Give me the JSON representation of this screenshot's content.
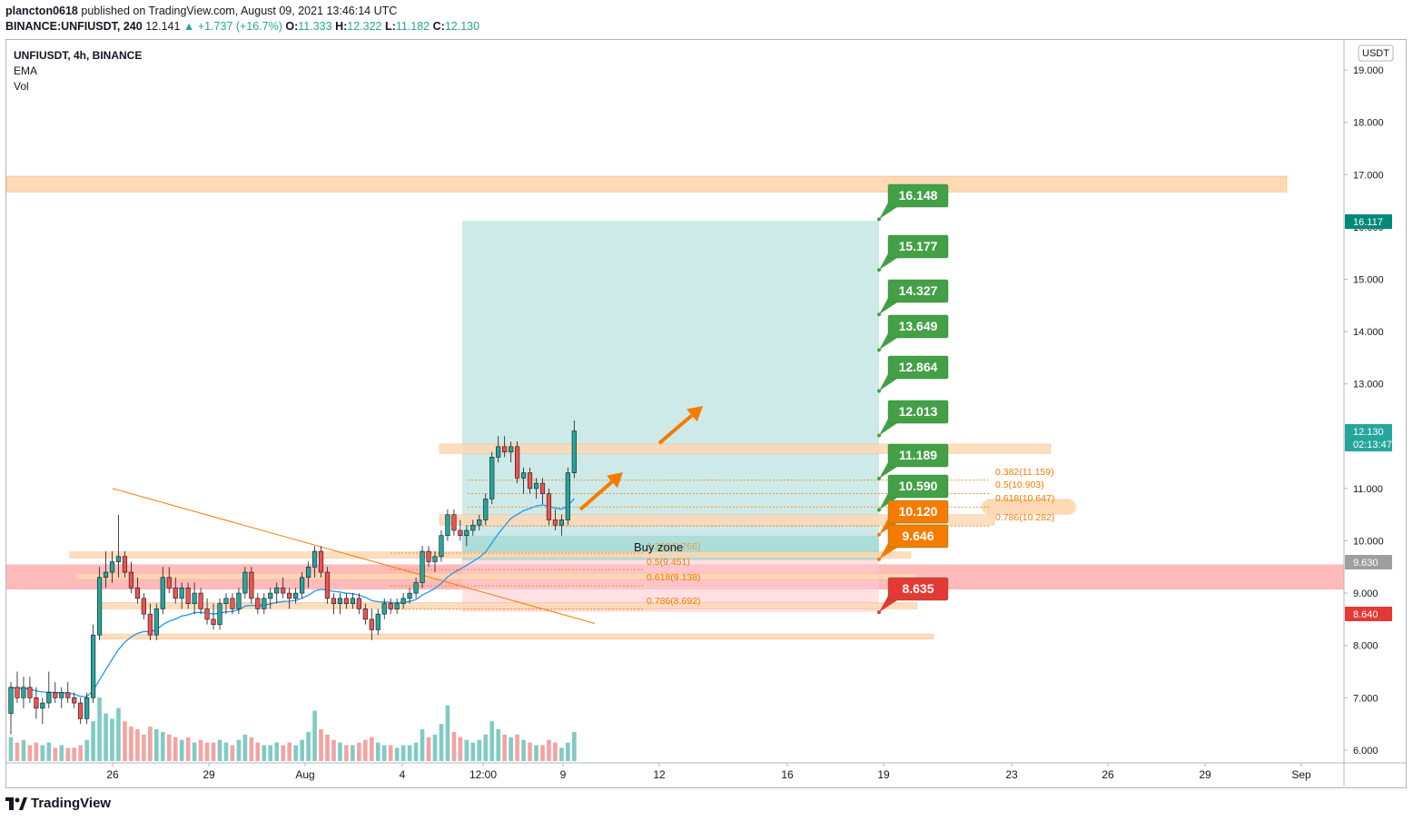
{
  "header": {
    "publisher": "plancton0618",
    "published_text": "published on TradingView.com, August 09, 2021 13:46:14 UTC",
    "symbol_full": "BINANCE:UNFIUSDT, 240",
    "last": "12.141",
    "change": "+1.737 (+16.7%)",
    "open_label": "O:",
    "open": "11.333",
    "high_label": "H:",
    "high": "12.322",
    "low_label": "L:",
    "low": "11.182",
    "close_label": "C:",
    "close": "12.130"
  },
  "legend": {
    "symbol": "UNFIUSDT, 4h, BINANCE",
    "ema": "EMA",
    "vol": "Vol"
  },
  "footer": {
    "brand": "TradingView"
  },
  "colors": {
    "up": "#26a69a",
    "down": "#ef5350",
    "ema": "#2196f3",
    "zone_orange": "#fdd9b5",
    "zone_red": "#ffb3b3",
    "position_teal": "#b2dfdb",
    "target_green": "#43a047",
    "target_orange": "#f57c00",
    "target_red": "#e53935",
    "fib_orange": "#f57c00"
  },
  "chart_data": {
    "type": "candlestick",
    "currency_label": "USDT",
    "y_axis": {
      "ylim": [
        5.8,
        19.6
      ],
      "ticks": [
        "19.000",
        "18.000",
        "17.000",
        "16.000",
        "15.000",
        "14.000",
        "13.000",
        "12.000",
        "11.000",
        "10.000",
        "9.000",
        "8.000",
        "7.000",
        "6.000"
      ]
    },
    "x_axis": {
      "ticks": [
        "26",
        "29",
        "Aug",
        "4",
        "12:00",
        "9",
        "12",
        "16",
        "19",
        "23",
        "26",
        "29",
        "Sep"
      ]
    },
    "price_badges": [
      {
        "value": "16.117",
        "color": "#00897b"
      },
      {
        "value": "12.130",
        "sub": "02:13:47",
        "color": "#26a69a"
      },
      {
        "value": "9.630",
        "color": "#9e9e9e"
      },
      {
        "value": "8.640",
        "color": "#e53935"
      }
    ],
    "targets": [
      {
        "label": "16.148",
        "kind": "tp"
      },
      {
        "label": "15.177",
        "kind": "tp"
      },
      {
        "label": "14.327",
        "kind": "tp"
      },
      {
        "label": "13.649",
        "kind": "tp"
      },
      {
        "label": "12.864",
        "kind": "tp"
      },
      {
        "label": "12.013",
        "kind": "tp"
      },
      {
        "label": "11.189",
        "kind": "tp"
      },
      {
        "label": "10.590",
        "kind": "tp"
      },
      {
        "label": "10.120",
        "kind": "entry"
      },
      {
        "label": "9.646",
        "kind": "entry"
      },
      {
        "label": "8.635",
        "kind": "stop"
      }
    ],
    "fib_upper": [
      "0.382(11.159)",
      "0.5(10.903)",
      "0.618(10.647)",
      "0.786(10.282)"
    ],
    "fib_lower": [
      "0.382(9.766)",
      "0.5(9.451)",
      "0.618(9.138)",
      "0.786(8.692)"
    ],
    "buy_zone_label": "Buy zone",
    "candles": [
      [
        6.7,
        7.3,
        6.3,
        7.2
      ],
      [
        7.2,
        7.5,
        6.9,
        7.0
      ],
      [
        7.0,
        7.4,
        6.8,
        7.2
      ],
      [
        7.2,
        7.4,
        6.9,
        7.0
      ],
      [
        7.0,
        7.2,
        6.6,
        6.8
      ],
      [
        6.8,
        7.0,
        6.5,
        6.9
      ],
      [
        6.9,
        7.5,
        6.8,
        7.1
      ],
      [
        7.1,
        7.3,
        6.9,
        7.0
      ],
      [
        7.0,
        7.2,
        6.8,
        7.1
      ],
      [
        7.1,
        7.3,
        6.9,
        7.0
      ],
      [
        7.0,
        7.1,
        6.8,
        6.9
      ],
      [
        6.9,
        7.0,
        6.5,
        6.6
      ],
      [
        6.6,
        7.1,
        6.5,
        7.0
      ],
      [
        7.0,
        8.4,
        6.9,
        8.2
      ],
      [
        8.2,
        9.5,
        8.1,
        9.3
      ],
      [
        9.3,
        9.8,
        9.1,
        9.4
      ],
      [
        9.4,
        9.8,
        9.2,
        9.6
      ],
      [
        9.6,
        10.5,
        9.3,
        9.7
      ],
      [
        9.7,
        9.8,
        9.3,
        9.4
      ],
      [
        9.4,
        9.6,
        9.0,
        9.1
      ],
      [
        9.1,
        9.3,
        8.8,
        8.9
      ],
      [
        8.9,
        9.0,
        8.5,
        8.6
      ],
      [
        8.6,
        8.8,
        8.1,
        8.2
      ],
      [
        8.2,
        8.8,
        8.1,
        8.7
      ],
      [
        8.7,
        9.5,
        8.6,
        9.3
      ],
      [
        9.3,
        9.5,
        9.0,
        9.1
      ],
      [
        9.1,
        9.3,
        8.8,
        8.9
      ],
      [
        8.9,
        9.2,
        8.7,
        9.1
      ],
      [
        9.1,
        9.2,
        8.7,
        8.8
      ],
      [
        8.8,
        9.2,
        8.6,
        9.0
      ],
      [
        9.0,
        9.1,
        8.6,
        8.7
      ],
      [
        8.7,
        8.9,
        8.4,
        8.5
      ],
      [
        8.5,
        8.8,
        8.3,
        8.4
      ],
      [
        8.4,
        8.9,
        8.3,
        8.8
      ],
      [
        8.8,
        9.0,
        8.6,
        8.9
      ],
      [
        8.9,
        9.0,
        8.6,
        8.7
      ],
      [
        8.7,
        9.1,
        8.6,
        9.0
      ],
      [
        9.0,
        9.5,
        8.9,
        9.4
      ],
      [
        9.4,
        9.5,
        8.8,
        8.9
      ],
      [
        8.9,
        9.0,
        8.6,
        8.7
      ],
      [
        8.7,
        9.0,
        8.6,
        8.9
      ],
      [
        8.9,
        9.1,
        8.7,
        9.0
      ],
      [
        9.0,
        9.2,
        8.8,
        9.1
      ],
      [
        9.1,
        9.3,
        8.9,
        9.0
      ],
      [
        9.0,
        9.1,
        8.7,
        8.9
      ],
      [
        8.9,
        9.1,
        8.8,
        9.0
      ],
      [
        9.0,
        9.4,
        8.9,
        9.3
      ],
      [
        9.3,
        9.6,
        9.1,
        9.5
      ],
      [
        9.5,
        9.9,
        9.3,
        9.8
      ],
      [
        9.8,
        9.9,
        9.3,
        9.4
      ],
      [
        9.4,
        9.5,
        8.8,
        8.9
      ],
      [
        8.9,
        9.0,
        8.6,
        8.8
      ],
      [
        8.8,
        9.0,
        8.6,
        8.9
      ],
      [
        8.9,
        9.0,
        8.7,
        8.8
      ],
      [
        8.8,
        9.0,
        8.7,
        8.9
      ],
      [
        8.9,
        9.0,
        8.6,
        8.7
      ],
      [
        8.7,
        8.8,
        8.4,
        8.5
      ],
      [
        8.5,
        8.7,
        8.1,
        8.3
      ],
      [
        8.3,
        8.7,
        8.2,
        8.6
      ],
      [
        8.6,
        8.9,
        8.5,
        8.8
      ],
      [
        8.8,
        8.9,
        8.6,
        8.7
      ],
      [
        8.7,
        8.9,
        8.6,
        8.8
      ],
      [
        8.8,
        9.0,
        8.7,
        8.9
      ],
      [
        8.9,
        9.1,
        8.8,
        9.0
      ],
      [
        9.0,
        9.3,
        8.9,
        9.2
      ],
      [
        9.2,
        9.9,
        9.1,
        9.8
      ],
      [
        9.8,
        9.9,
        9.5,
        9.6
      ],
      [
        9.6,
        9.8,
        9.4,
        9.7
      ],
      [
        9.7,
        10.2,
        9.6,
        10.1
      ],
      [
        10.1,
        10.6,
        10.0,
        10.5
      ],
      [
        10.5,
        10.6,
        10.1,
        10.2
      ],
      [
        10.2,
        10.4,
        10.0,
        10.1
      ],
      [
        10.1,
        10.3,
        9.9,
        10.2
      ],
      [
        10.2,
        10.4,
        10.1,
        10.3
      ],
      [
        10.3,
        10.5,
        10.2,
        10.4
      ],
      [
        10.4,
        10.9,
        10.3,
        10.8
      ],
      [
        10.8,
        11.7,
        10.7,
        11.6
      ],
      [
        11.6,
        12.0,
        11.5,
        11.8
      ],
      [
        11.8,
        12.0,
        11.6,
        11.7
      ],
      [
        11.7,
        11.9,
        11.5,
        11.8
      ],
      [
        11.8,
        11.9,
        11.1,
        11.2
      ],
      [
        11.2,
        11.4,
        10.9,
        11.3
      ],
      [
        11.3,
        11.4,
        10.9,
        11.0
      ],
      [
        11.0,
        11.2,
        10.8,
        11.1
      ],
      [
        11.1,
        11.2,
        10.7,
        10.9
      ],
      [
        10.9,
        11.0,
        10.3,
        10.4
      ],
      [
        10.4,
        10.6,
        10.2,
        10.3
      ],
      [
        10.3,
        10.5,
        10.1,
        10.4
      ],
      [
        10.4,
        11.4,
        10.3,
        11.3
      ],
      [
        11.3,
        12.3,
        11.2,
        12.1
      ]
    ],
    "volumes": [
      0.9,
      0.7,
      0.8,
      0.6,
      0.7,
      0.6,
      0.7,
      0.5,
      0.6,
      0.5,
      0.5,
      0.6,
      0.8,
      1.5,
      2.4,
      1.8,
      1.6,
      2.0,
      1.5,
      1.3,
      1.2,
      1.0,
      1.3,
      1.2,
      1.1,
      1.0,
      0.9,
      0.8,
      0.9,
      0.7,
      0.8,
      0.7,
      0.7,
      0.8,
      0.7,
      0.6,
      0.8,
      1.0,
      0.9,
      0.7,
      0.6,
      0.6,
      0.7,
      0.6,
      0.7,
      0.6,
      0.8,
      1.1,
      1.9,
      1.2,
      1.0,
      0.8,
      0.7,
      0.6,
      0.6,
      0.7,
      0.8,
      0.9,
      0.7,
      0.6,
      0.6,
      0.5,
      0.6,
      0.6,
      0.7,
      1.2,
      0.9,
      1.0,
      1.4,
      2.1,
      1.1,
      0.9,
      0.8,
      0.7,
      0.8,
      1.0,
      1.5,
      1.2,
      1.0,
      0.9,
      1.0,
      0.8,
      0.7,
      0.6,
      0.6,
      0.8,
      0.7,
      0.5,
      0.7,
      1.1
    ]
  }
}
